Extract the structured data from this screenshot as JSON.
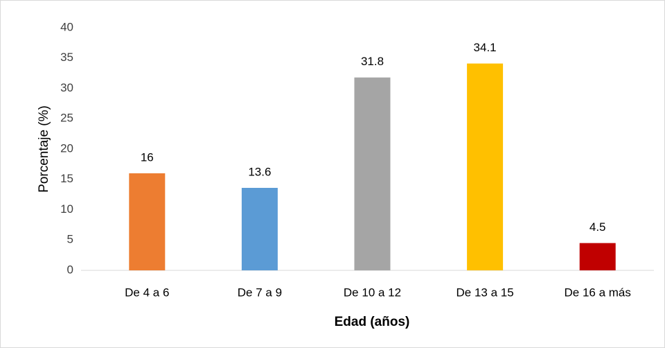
{
  "chart_data": {
    "type": "bar",
    "categories": [
      "De 4 a 6",
      "De 7 a 9",
      "De 10 a 12",
      "De 13 a 15",
      "De 16 a más"
    ],
    "values": [
      16,
      13.6,
      31.8,
      34.1,
      4.5
    ],
    "colors": [
      "#ed7d31",
      "#5b9bd5",
      "#a5a5a5",
      "#ffc000",
      "#c00000"
    ],
    "ylim": [
      0,
      40
    ],
    "yticks": [
      0,
      5,
      10,
      15,
      20,
      25,
      30,
      35,
      40
    ],
    "y_label": "Porcentaje (%)",
    "x_label": "Edad (años)",
    "grid": false
  }
}
